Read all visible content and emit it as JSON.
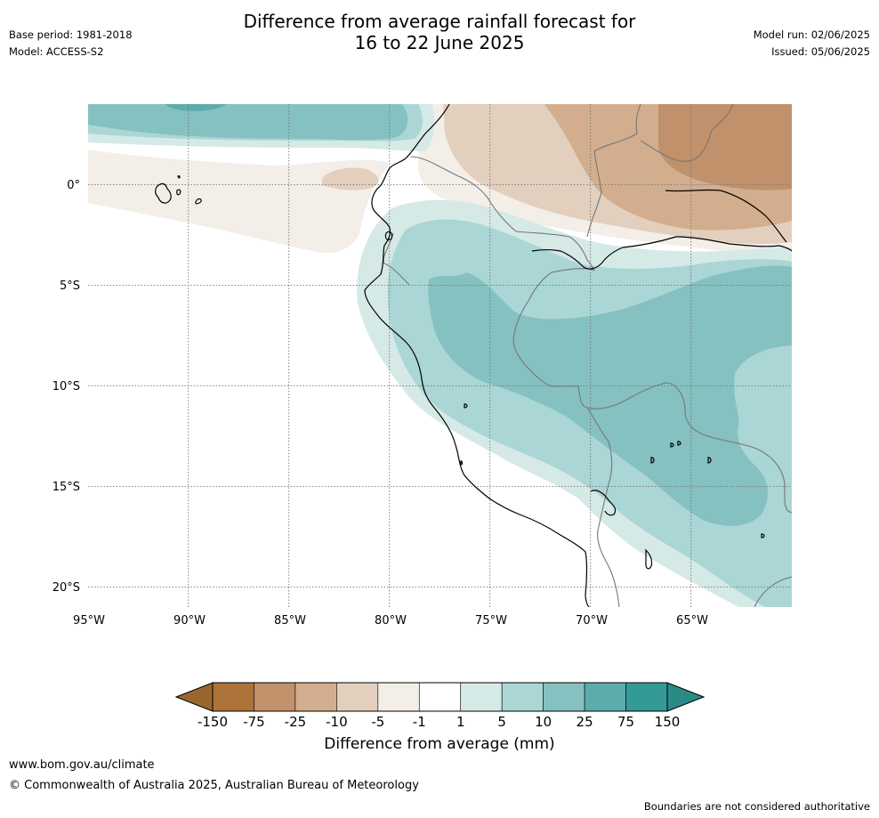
{
  "title_line1": "Difference from average rainfall forecast for",
  "title_line2": "16 to 22 June 2025",
  "base_period": "Base period: 1981-2018",
  "model": "Model: ACCESS-S2",
  "model_run": "Model run: 02/06/2025",
  "issued": "Issued: 05/06/2025",
  "map": {
    "lon_range": [
      -95,
      -60
    ],
    "lat_range": [
      -21,
      4
    ],
    "lon_ticks": [
      "95°W",
      "90°W",
      "85°W",
      "80°W",
      "75°W",
      "70°W",
      "65°W"
    ],
    "lat_ticks": [
      "0°",
      "5°S",
      "10°S",
      "15°S",
      "20°S"
    ],
    "gridlines": "dotted",
    "colors": {
      "brown_strong": "#ad7339",
      "brown_mid": "#c0916a",
      "brown_light": "#d2ae8e",
      "brown_pale": "#e3cfbd",
      "brown_faint": "#f3eee8",
      "neutral": "#ffffff",
      "teal_faint": "#d5e9e7",
      "teal_pale": "#aad6d5",
      "teal_light": "#85c1c0",
      "teal_mid": "#5bacab",
      "teal_strong": "#349a96"
    }
  },
  "colorbar": {
    "labels": [
      "-150",
      "-75",
      "-25",
      "-10",
      "-5",
      "-1",
      "1",
      "5",
      "10",
      "25",
      "75",
      "150"
    ],
    "colors": [
      "#ad7339",
      "#c0916a",
      "#d2ae8e",
      "#e3cfbd",
      "#f3eee8",
      "#ffffff",
      "#d5e9e7",
      "#aad6d5",
      "#85c1c0",
      "#5bacab",
      "#349a96"
    ],
    "under_color": "#9b6530",
    "over_color": "#2a8a86",
    "title": "Difference from average (mm)"
  },
  "footer": {
    "url": "www.bom.gov.au/climate",
    "copyright": "© Commonwealth of Australia 2025, Australian Bureau of Meteorology",
    "disclaimer": "Boundaries are not considered authoritative"
  }
}
